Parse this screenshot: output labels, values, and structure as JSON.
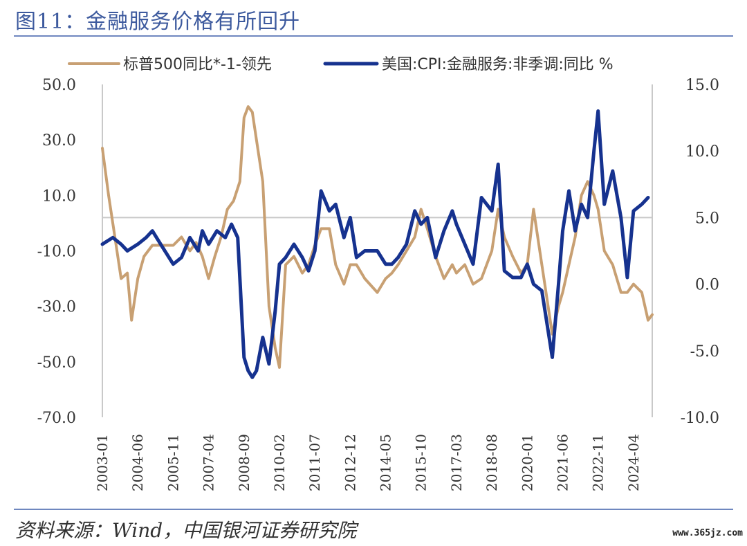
{
  "header": {
    "title": "图11：金融服务价格有所回升"
  },
  "footer": {
    "source": "资料来源：Wind，中国银河证券研究院",
    "watermark": "www.365jz.com"
  },
  "colors": {
    "sp500": "#c8a073",
    "cpi": "#16328f",
    "frame": "#6f87bf"
  },
  "chart_data": {
    "type": "line",
    "legend": {
      "placement": "top",
      "entries": [
        "标普500同比*-1-领先",
        "美国:CPI:金融服务:非季调:同比 %"
      ]
    },
    "left_axis": {
      "range": [
        -70,
        50
      ],
      "ticks": [
        "50.0",
        "30.0",
        "10.0",
        "-10.0",
        "-30.0",
        "-50.0",
        "-70.0"
      ]
    },
    "right_axis": {
      "range": [
        -10,
        15
      ],
      "ticks": [
        "15.0",
        "10.0",
        "5.0",
        "0.0",
        "-5.0",
        "-10.0"
      ]
    },
    "x_axis": {
      "range": [
        "2003-01",
        "2025-01"
      ],
      "ticks": [
        "2003-01",
        "2004-06",
        "2005-11",
        "2007-04",
        "2008-09",
        "2010-02",
        "2011-07",
        "2012-12",
        "2014-05",
        "2015-10",
        "2017-03",
        "2018-08",
        "2020-01",
        "2021-06",
        "2022-11",
        "2024-04"
      ]
    },
    "series": [
      {
        "name": "标普500同比*-1-领先",
        "axis": "left",
        "points": [
          [
            "2003-01",
            27
          ],
          [
            "2003-04",
            10
          ],
          [
            "2003-07",
            -5
          ],
          [
            "2003-10",
            -20
          ],
          [
            "2004-01",
            -18
          ],
          [
            "2004-03",
            -35
          ],
          [
            "2004-06",
            -20
          ],
          [
            "2004-09",
            -12
          ],
          [
            "2005-01",
            -8
          ],
          [
            "2005-06",
            -8
          ],
          [
            "2005-11",
            -8
          ],
          [
            "2006-03",
            -5
          ],
          [
            "2006-07",
            -10
          ],
          [
            "2006-10",
            -7
          ],
          [
            "2007-01",
            -12
          ],
          [
            "2007-04",
            -20
          ],
          [
            "2007-07",
            -12
          ],
          [
            "2007-10",
            -5
          ],
          [
            "2008-01",
            5
          ],
          [
            "2008-04",
            8
          ],
          [
            "2008-07",
            15
          ],
          [
            "2008-09",
            38
          ],
          [
            "2008-11",
            42
          ],
          [
            "2009-01",
            40
          ],
          [
            "2009-03",
            30
          ],
          [
            "2009-06",
            15
          ],
          [
            "2009-09",
            -30
          ],
          [
            "2009-12",
            -45
          ],
          [
            "2010-02",
            -52
          ],
          [
            "2010-05",
            -15
          ],
          [
            "2010-09",
            -12
          ],
          [
            "2011-01",
            -18
          ],
          [
            "2011-04",
            -15
          ],
          [
            "2011-07",
            -8
          ],
          [
            "2011-10",
            -2
          ],
          [
            "2012-02",
            -2
          ],
          [
            "2012-05",
            -15
          ],
          [
            "2012-09",
            -22
          ],
          [
            "2012-12",
            -15
          ],
          [
            "2013-03",
            -15
          ],
          [
            "2013-07",
            -20
          ],
          [
            "2014-01",
            -25
          ],
          [
            "2014-05",
            -20
          ],
          [
            "2014-08",
            -18
          ],
          [
            "2014-11",
            -15
          ],
          [
            "2015-03",
            -10
          ],
          [
            "2015-07",
            -5
          ],
          [
            "2015-10",
            5
          ],
          [
            "2016-01",
            -2
          ],
          [
            "2016-05",
            -12
          ],
          [
            "2016-09",
            -20
          ],
          [
            "2017-01",
            -15
          ],
          [
            "2017-03",
            -18
          ],
          [
            "2017-07",
            -15
          ],
          [
            "2017-11",
            -22
          ],
          [
            "2018-03",
            -20
          ],
          [
            "2018-08",
            -10
          ],
          [
            "2018-11",
            5
          ],
          [
            "2019-02",
            -5
          ],
          [
            "2019-06",
            -12
          ],
          [
            "2019-10",
            -18
          ],
          [
            "2020-01",
            -15
          ],
          [
            "2020-04",
            5
          ],
          [
            "2020-08",
            -15
          ],
          [
            "2021-01",
            -40
          ],
          [
            "2021-04",
            -30
          ],
          [
            "2021-06",
            -25
          ],
          [
            "2021-09",
            -15
          ],
          [
            "2021-12",
            -5
          ],
          [
            "2022-03",
            10
          ],
          [
            "2022-06",
            15
          ],
          [
            "2022-09",
            10
          ],
          [
            "2022-11",
            5
          ],
          [
            "2023-02",
            -10
          ],
          [
            "2023-06",
            -15
          ],
          [
            "2023-10",
            -25
          ],
          [
            "2024-01",
            -25
          ],
          [
            "2024-04",
            -22
          ],
          [
            "2024-08",
            -25
          ],
          [
            "2024-11",
            -35
          ],
          [
            "2025-01",
            -33
          ]
        ]
      },
      {
        "name": "美国:CPI:金融服务:非季调:同比 %",
        "axis": "right",
        "points": [
          [
            "2003-01",
            3.0
          ],
          [
            "2003-06",
            3.5
          ],
          [
            "2003-10",
            3.0
          ],
          [
            "2004-01",
            2.5
          ],
          [
            "2004-06",
            3.0
          ],
          [
            "2004-10",
            3.5
          ],
          [
            "2005-01",
            4.0
          ],
          [
            "2005-05",
            3.0
          ],
          [
            "2005-11",
            1.5
          ],
          [
            "2006-03",
            2.0
          ],
          [
            "2006-07",
            3.5
          ],
          [
            "2006-11",
            2.5
          ],
          [
            "2007-01",
            4.0
          ],
          [
            "2007-04",
            3.0
          ],
          [
            "2007-08",
            4.0
          ],
          [
            "2007-12",
            3.5
          ],
          [
            "2008-03",
            4.5
          ],
          [
            "2008-06",
            3.5
          ],
          [
            "2008-09",
            -5.5
          ],
          [
            "2008-11",
            -6.5
          ],
          [
            "2009-01",
            -7.0
          ],
          [
            "2009-03",
            -6.5
          ],
          [
            "2009-06",
            -4.0
          ],
          [
            "2009-09",
            -6.0
          ],
          [
            "2009-12",
            -2.0
          ],
          [
            "2010-02",
            1.5
          ],
          [
            "2010-05",
            2.0
          ],
          [
            "2010-09",
            3.0
          ],
          [
            "2011-01",
            2.0
          ],
          [
            "2011-04",
            1.0
          ],
          [
            "2011-07",
            2.5
          ],
          [
            "2011-10",
            7.0
          ],
          [
            "2012-02",
            5.5
          ],
          [
            "2012-05",
            6.0
          ],
          [
            "2012-09",
            3.5
          ],
          [
            "2012-12",
            5.0
          ],
          [
            "2013-03",
            2.0
          ],
          [
            "2013-07",
            2.5
          ],
          [
            "2014-01",
            2.5
          ],
          [
            "2014-05",
            1.5
          ],
          [
            "2014-08",
            1.5
          ],
          [
            "2014-11",
            2.0
          ],
          [
            "2015-03",
            3.0
          ],
          [
            "2015-07",
            5.5
          ],
          [
            "2015-10",
            4.5
          ],
          [
            "2016-01",
            5.0
          ],
          [
            "2016-05",
            2.0
          ],
          [
            "2016-09",
            4.0
          ],
          [
            "2017-01",
            5.5
          ],
          [
            "2017-03",
            4.5
          ],
          [
            "2017-07",
            3.0
          ],
          [
            "2017-11",
            1.5
          ],
          [
            "2018-03",
            6.5
          ],
          [
            "2018-08",
            5.5
          ],
          [
            "2018-11",
            9.0
          ],
          [
            "2019-02",
            1.0
          ],
          [
            "2019-06",
            0.5
          ],
          [
            "2019-10",
            0.5
          ],
          [
            "2020-01",
            1.5
          ],
          [
            "2020-04",
            0
          ],
          [
            "2020-08",
            -0.5
          ],
          [
            "2021-01",
            -5.5
          ],
          [
            "2021-04",
            0
          ],
          [
            "2021-06",
            4.0
          ],
          [
            "2021-09",
            7.0
          ],
          [
            "2021-12",
            4.0
          ],
          [
            "2022-03",
            6.0
          ],
          [
            "2022-06",
            5.0
          ],
          [
            "2022-09",
            10.0
          ],
          [
            "2022-11",
            13.0
          ],
          [
            "2023-02",
            6.0
          ],
          [
            "2023-06",
            8.5
          ],
          [
            "2023-10",
            5.0
          ],
          [
            "2024-01",
            0.5
          ],
          [
            "2024-04",
            5.5
          ],
          [
            "2024-08",
            6.0
          ],
          [
            "2024-11",
            6.5
          ]
        ]
      }
    ],
    "reference_line": {
      "axis": "right",
      "value": 5.0
    },
    "grid": false
  }
}
